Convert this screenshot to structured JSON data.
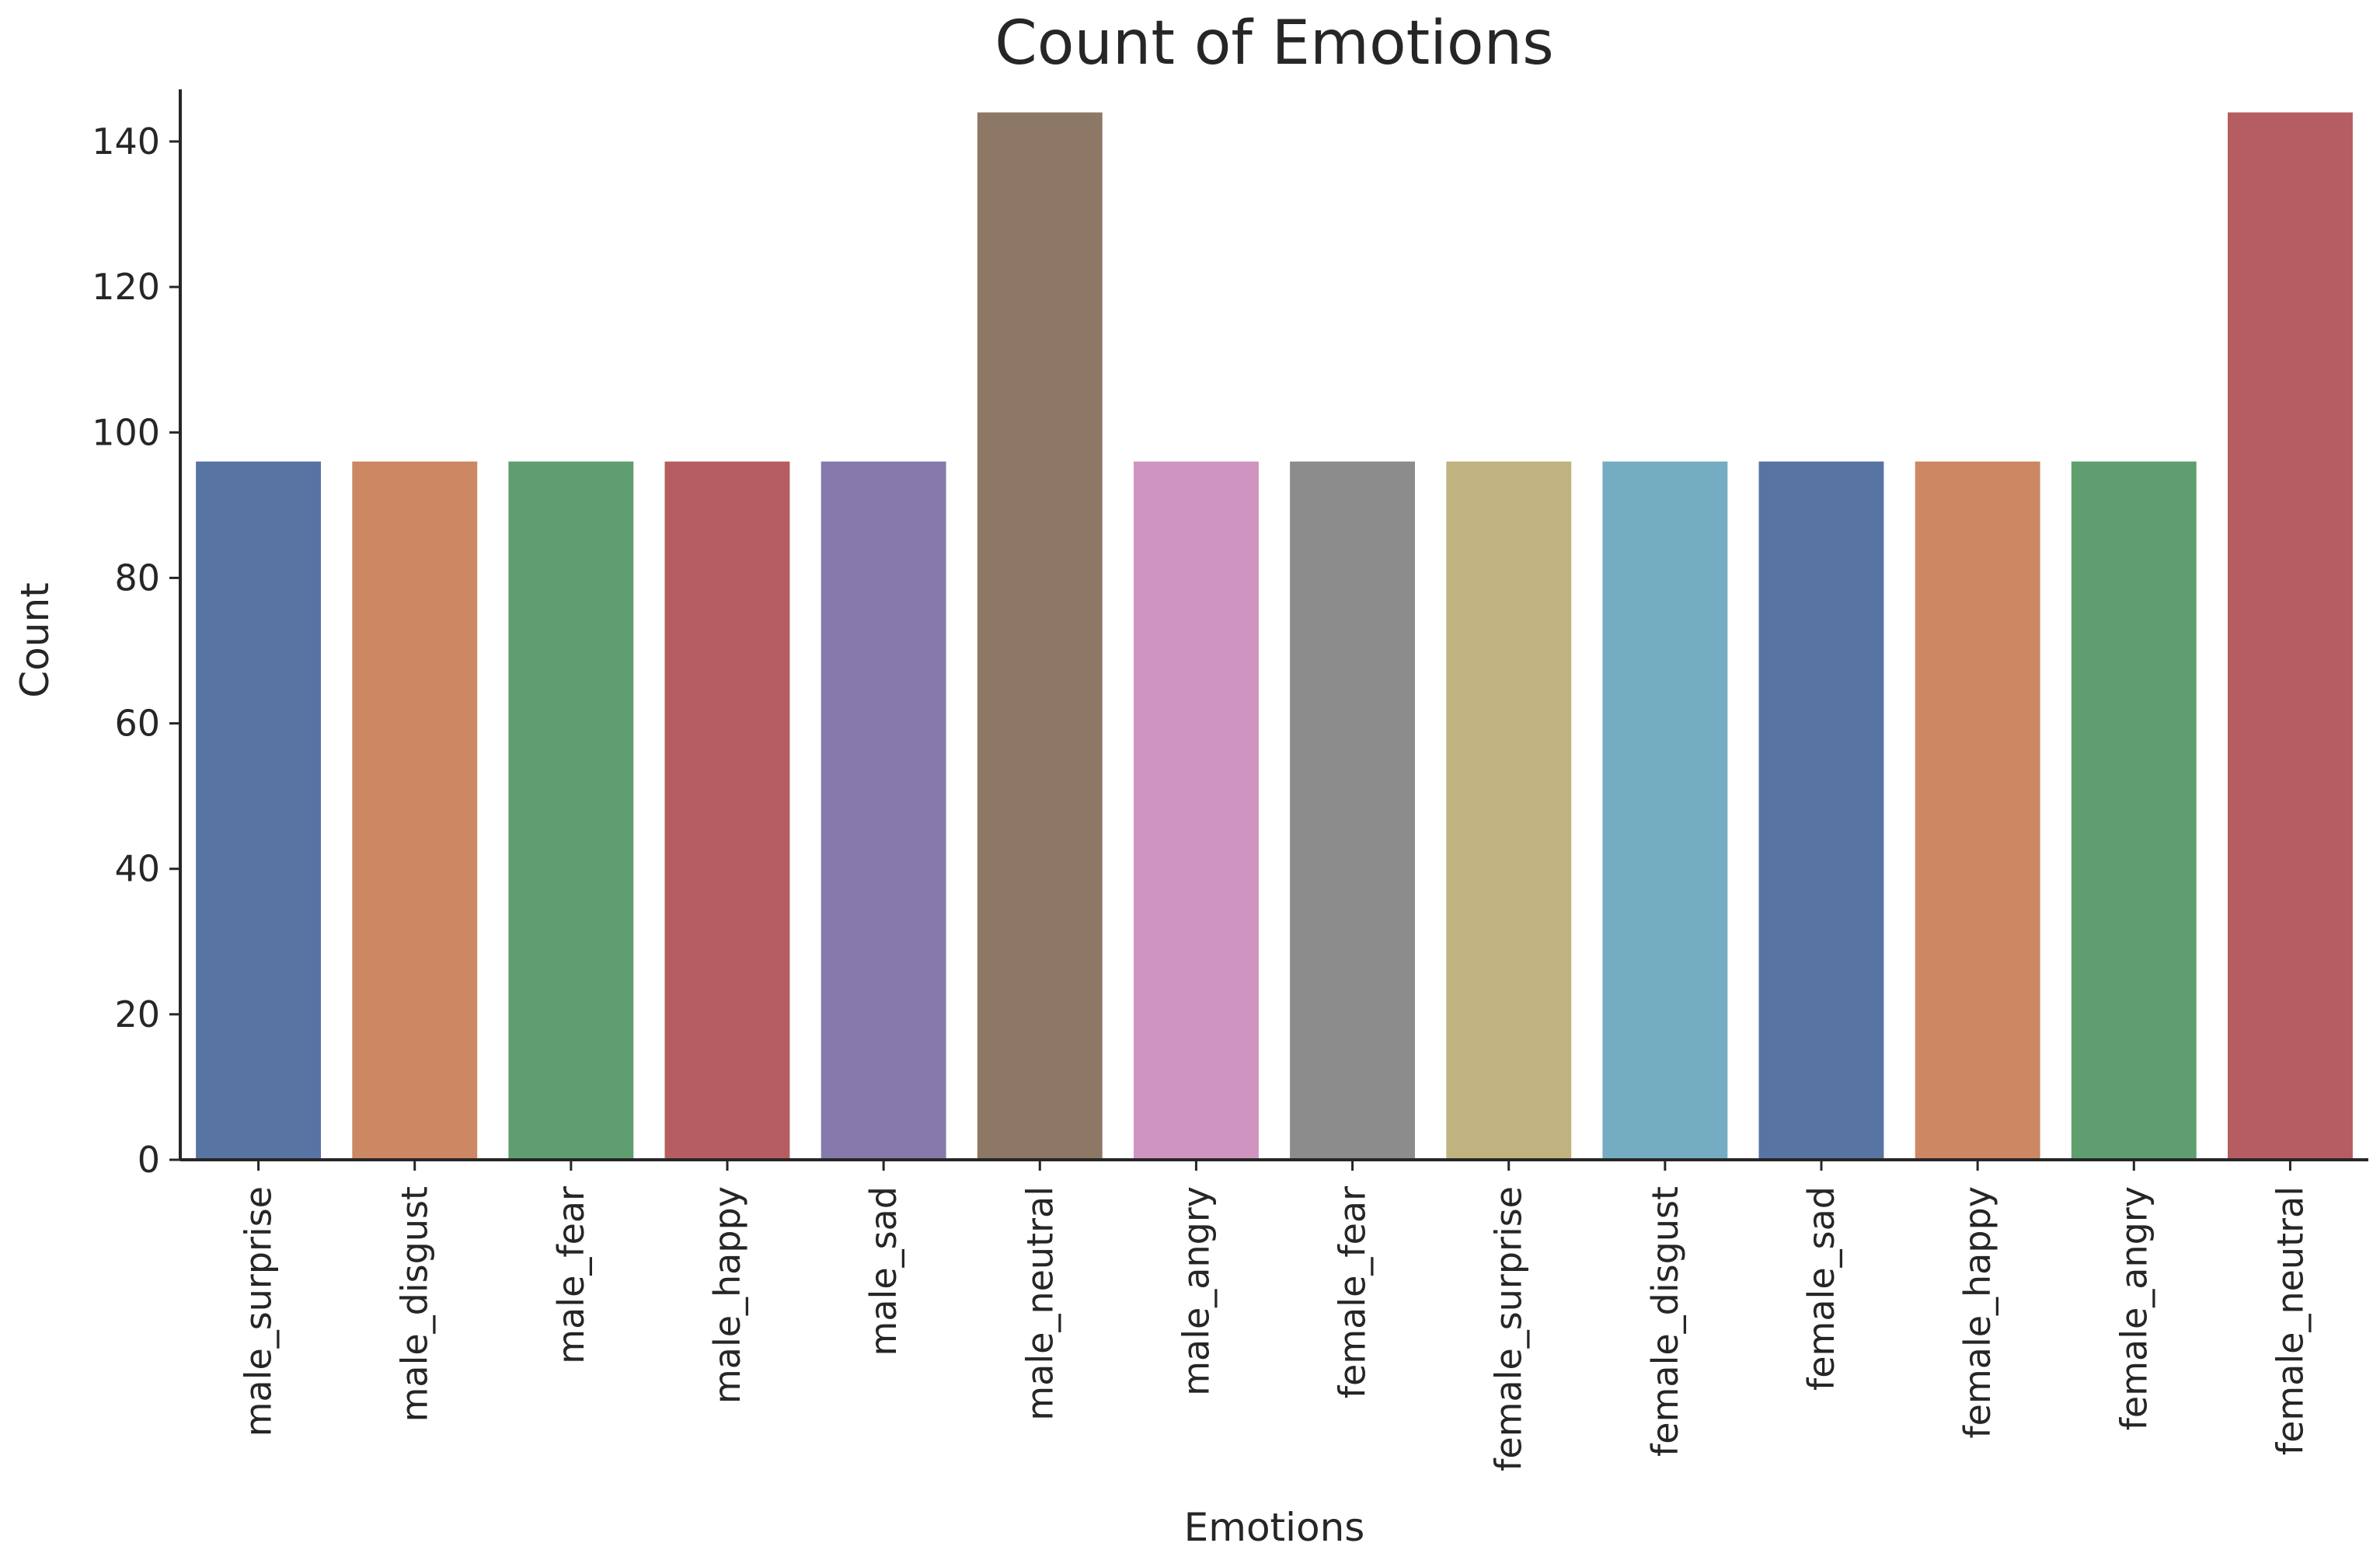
{
  "chart_data": {
    "type": "bar",
    "title": "Count of Emotions",
    "xlabel": "Emotions",
    "ylabel": "Count",
    "ylim": [
      0,
      150
    ],
    "yticks": [
      0,
      20,
      40,
      60,
      80,
      100,
      120,
      140
    ],
    "grid": false,
    "legend": "none",
    "categories": [
      "male_surprise",
      "male_disgust",
      "male_fear",
      "male_happy",
      "male_sad",
      "male_neutral",
      "male_angry",
      "female_fear",
      "female_surprise",
      "female_disgust",
      "female_sad",
      "female_happy",
      "female_angry",
      "female_neutral"
    ],
    "values": [
      96,
      96,
      96,
      96,
      96,
      144,
      96,
      96,
      96,
      96,
      96,
      96,
      96,
      144
    ],
    "colors": [
      "#5874a3",
      "#cb8863",
      "#5f9e6e",
      "#b55d60",
      "#857aab",
      "#8d7866",
      "#d094c0",
      "#8c8c8c",
      "#c1b37f",
      "#74adc1",
      "#5874a3",
      "#cb8863",
      "#5f9e6e",
      "#b55d60"
    ]
  }
}
